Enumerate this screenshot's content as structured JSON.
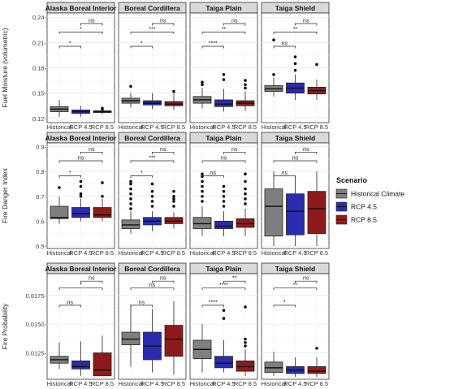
{
  "chart_data": {
    "type": "boxplot",
    "facets_columns": [
      "Alaska Boreal Interior",
      "Boreal Cordillera",
      "Taiga Plain",
      "Taiga Shield"
    ],
    "x_categories": [
      "Historical",
      "RCP 4.5",
      "RCP 8.5"
    ],
    "legend": {
      "title": "Scenario",
      "entries": [
        {
          "label": "Historical Climate",
          "color": "#7f7f7f"
        },
        {
          "label": "RCP 4.5",
          "color": "#2b2bb0"
        },
        {
          "label": "RCP 8.5",
          "color": "#8e1b1b"
        }
      ]
    },
    "rows": [
      {
        "ylabel": "Fuel Moisture (volumetric)",
        "ylim": [
          0.115,
          0.245
        ],
        "ticks": [
          0.12,
          0.15,
          0.18,
          0.21,
          0.24
        ],
        "tick_labels": [
          "0.12-",
          "0.15-",
          "0.18-",
          "0.21-",
          "0.24-"
        ],
        "panels": [
          {
            "boxes": [
              {
                "q1": 0.128,
                "med": 0.131,
                "q3": 0.134,
                "lo": 0.122,
                "hi": 0.142,
                "out": []
              },
              {
                "q1": 0.126,
                "med": 0.128,
                "q3": 0.13,
                "lo": 0.122,
                "hi": 0.135,
                "out": []
              },
              {
                "q1": 0.127,
                "med": 0.128,
                "q3": 0.129,
                "lo": 0.125,
                "hi": 0.132,
                "out": [
                  0.131,
                  0.132
                ]
              }
            ],
            "brackets": [
              {
                "a": 0,
                "b": 1,
                "y": 0.2055,
                "label": "*"
              },
              {
                "a": 0,
                "b": 2,
                "y": 0.2225,
                "label": "*"
              },
              {
                "a": 1,
                "b": 2,
                "y": 0.2325,
                "label": "ns"
              }
            ]
          },
          {
            "boxes": [
              {
                "q1": 0.138,
                "med": 0.141,
                "q3": 0.144,
                "lo": 0.133,
                "hi": 0.15,
                "out": [
                  0.158
                ]
              },
              {
                "q1": 0.136,
                "med": 0.138,
                "q3": 0.141,
                "lo": 0.131,
                "hi": 0.15,
                "out": []
              },
              {
                "q1": 0.135,
                "med": 0.137,
                "q3": 0.14,
                "lo": 0.13,
                "hi": 0.15,
                "out": [
                  0.152
                ]
              }
            ],
            "brackets": [
              {
                "a": 0,
                "b": 1,
                "y": 0.2055,
                "label": "*"
              },
              {
                "a": 0,
                "b": 2,
                "y": 0.2225,
                "label": "***"
              },
              {
                "a": 1,
                "b": 2,
                "y": 0.2325,
                "label": "ns"
              }
            ]
          },
          {
            "boxes": [
              {
                "q1": 0.138,
                "med": 0.142,
                "q3": 0.146,
                "lo": 0.132,
                "hi": 0.156,
                "out": [
                  0.16,
                  0.163
                ]
              },
              {
                "q1": 0.134,
                "med": 0.137,
                "q3": 0.142,
                "lo": 0.128,
                "hi": 0.155,
                "out": [
                  0.166,
                  0.172
                ]
              },
              {
                "q1": 0.135,
                "med": 0.138,
                "q3": 0.141,
                "lo": 0.129,
                "hi": 0.152,
                "out": [
                  0.156,
                  0.16,
                  0.165
                ]
              }
            ],
            "brackets": [
              {
                "a": 0,
                "b": 1,
                "y": 0.2055,
                "label": "****"
              },
              {
                "a": 0,
                "b": 2,
                "y": 0.2225,
                "label": "**"
              },
              {
                "a": 1,
                "b": 2,
                "y": 0.2325,
                "label": "ns"
              }
            ]
          },
          {
            "boxes": [
              {
                "q1": 0.152,
                "med": 0.155,
                "q3": 0.159,
                "lo": 0.146,
                "hi": 0.168,
                "out": [
                  0.172,
                  0.213
                ]
              },
              {
                "q1": 0.15,
                "med": 0.156,
                "q3": 0.162,
                "lo": 0.142,
                "hi": 0.172,
                "out": [
                  0.177,
                  0.185,
                  0.193
                ]
              },
              {
                "q1": 0.149,
                "med": 0.153,
                "q3": 0.157,
                "lo": 0.142,
                "hi": 0.166,
                "out": [
                  0.184
                ]
              }
            ],
            "brackets": [
              {
                "a": 0,
                "b": 1,
                "y": 0.2055,
                "label": "ns"
              },
              {
                "a": 0,
                "b": 2,
                "y": 0.2225,
                "label": "**"
              },
              {
                "a": 1,
                "b": 2,
                "y": 0.2325,
                "label": "ns"
              }
            ]
          }
        ]
      },
      {
        "ylabel": "Fire Danger Index",
        "ylim": [
          0.49,
          0.915
        ],
        "ticks": [
          0.5,
          0.6,
          0.7,
          0.8,
          0.9
        ],
        "tick_labels": [
          "0.5-",
          "0.6-",
          "0.7-",
          "0.8-",
          "0.9-"
        ],
        "panels": [
          {
            "boxes": [
              {
                "q1": 0.61,
                "med": 0.615,
                "q3": 0.66,
                "lo": 0.59,
                "hi": 0.7,
                "out": [
                  0.735
                ]
              },
              {
                "q1": 0.615,
                "med": 0.63,
                "q3": 0.655,
                "lo": 0.6,
                "hi": 0.69,
                "out": [
                  0.7,
                  0.71,
                  0.74,
                  0.76
                ]
              },
              {
                "q1": 0.615,
                "med": 0.625,
                "q3": 0.655,
                "lo": 0.6,
                "hi": 0.69,
                "out": [
                  0.7,
                  0.755
                ]
              }
            ],
            "brackets": [
              {
                "a": 0,
                "b": 1,
                "y": 0.783,
                "label": "*"
              },
              {
                "a": 0,
                "b": 2,
                "y": 0.843,
                "label": "ns"
              },
              {
                "a": 1,
                "b": 2,
                "y": 0.878,
                "label": "ns"
              }
            ]
          },
          {
            "boxes": [
              {
                "q1": 0.57,
                "med": 0.585,
                "q3": 0.605,
                "lo": 0.55,
                "hi": 0.64,
                "out": [
                  0.65,
                  0.67,
                  0.69,
                  0.71,
                  0.73,
                  0.75,
                  0.76
                ]
              },
              {
                "q1": 0.585,
                "med": 0.6,
                "q3": 0.615,
                "lo": 0.56,
                "hi": 0.64,
                "out": [
                  0.66,
                  0.68,
                  0.7,
                  0.72,
                  0.75
                ]
              },
              {
                "q1": 0.59,
                "med": 0.6,
                "q3": 0.615,
                "lo": 0.57,
                "hi": 0.635,
                "out": [
                  0.66,
                  0.68,
                  0.69,
                  0.7,
                  0.72
                ]
              }
            ],
            "brackets": [
              {
                "a": 0,
                "b": 1,
                "y": 0.783,
                "label": "*"
              },
              {
                "a": 0,
                "b": 2,
                "y": 0.843,
                "label": "***"
              },
              {
                "a": 1,
                "b": 2,
                "y": 0.878,
                "label": "ns"
              }
            ]
          },
          {
            "boxes": [
              {
                "q1": 0.57,
                "med": 0.59,
                "q3": 0.615,
                "lo": 0.54,
                "hi": 0.66,
                "out": [
                  0.68,
                  0.7,
                  0.72,
                  0.74,
                  0.76,
                  0.78,
                  0.79
                ]
              },
              {
                "q1": 0.57,
                "med": 0.58,
                "q3": 0.6,
                "lo": 0.54,
                "hi": 0.64,
                "out": [
                  0.66,
                  0.68,
                  0.7,
                  0.72,
                  0.74
                ]
              },
              {
                "q1": 0.575,
                "med": 0.59,
                "q3": 0.61,
                "lo": 0.54,
                "hi": 0.65,
                "out": [
                  0.67,
                  0.69,
                  0.71,
                  0.73,
                  0.76,
                  0.79
                ]
              }
            ],
            "brackets": [
              {
                "a": 0,
                "b": 1,
                "y": 0.783,
                "label": "ns"
              },
              {
                "a": 0,
                "b": 2,
                "y": 0.843,
                "label": "ns"
              },
              {
                "a": 1,
                "b": 2,
                "y": 0.878,
                "label": "ns"
              }
            ]
          },
          {
            "boxes": [
              {
                "q1": 0.54,
                "med": 0.66,
                "q3": 0.73,
                "lo": 0.5,
                "hi": 0.8,
                "out": []
              },
              {
                "q1": 0.545,
                "med": 0.64,
                "q3": 0.71,
                "lo": 0.5,
                "hi": 0.78,
                "out": []
              },
              {
                "q1": 0.55,
                "med": 0.65,
                "q3": 0.72,
                "lo": 0.5,
                "hi": 0.8,
                "out": []
              }
            ],
            "brackets": [
              {
                "a": 0,
                "b": 1,
                "y": 0.783,
                "label": "ns"
              },
              {
                "a": 0,
                "b": 2,
                "y": 0.843,
                "label": "ns"
              },
              {
                "a": 1,
                "b": 2,
                "y": 0.878,
                "label": "ns"
              }
            ]
          }
        ]
      },
      {
        "ylabel": "Fire Probability",
        "ylim": [
          0.0102,
          0.0194
        ],
        "ticks": [
          0.0125,
          0.015,
          0.0175
        ],
        "tick_labels": [
          "0.0125-",
          "0.0150-",
          "0.0175-"
        ],
        "panels": [
          {
            "boxes": [
              {
                "q1": 0.0116,
                "med": 0.0119,
                "q3": 0.0122,
                "lo": 0.0111,
                "hi": 0.0134,
                "out": []
              },
              {
                "q1": 0.0111,
                "med": 0.0113,
                "q3": 0.0118,
                "lo": 0.0105,
                "hi": 0.0135,
                "out": []
              },
              {
                "q1": 0.0105,
                "med": 0.011,
                "q3": 0.0125,
                "lo": 0.0105,
                "hi": 0.014,
                "out": []
              }
            ],
            "brackets": [
              {
                "a": 0,
                "b": 1,
                "y": 0.01665,
                "label": "ns"
              },
              {
                "a": 0,
                "b": 2,
                "y": 0.01815,
                "label": "*"
              },
              {
                "a": 1,
                "b": 2,
                "y": 0.01875,
                "label": "ns"
              }
            ]
          },
          {
            "boxes": [
              {
                "q1": 0.0132,
                "med": 0.0137,
                "q3": 0.0143,
                "lo": 0.0113,
                "hi": 0.0167,
                "out": []
              },
              {
                "q1": 0.0119,
                "med": 0.0131,
                "q3": 0.0143,
                "lo": 0.0108,
                "hi": 0.0163,
                "out": []
              },
              {
                "q1": 0.0122,
                "med": 0.0137,
                "q3": 0.0149,
                "lo": 0.0106,
                "hi": 0.017,
                "out": []
              }
            ],
            "brackets": [
              {
                "a": 0,
                "b": 1,
                "y": 0.01665,
                "label": "ns"
              },
              {
                "a": 0,
                "b": 2,
                "y": 0.01815,
                "label": "ns"
              },
              {
                "a": 1,
                "b": 2,
                "y": 0.01875,
                "label": "ns"
              }
            ]
          },
          {
            "boxes": [
              {
                "q1": 0.012,
                "med": 0.0128,
                "q3": 0.0136,
                "lo": 0.0108,
                "hi": 0.015,
                "out": []
              },
              {
                "q1": 0.0112,
                "med": 0.0116,
                "q3": 0.0122,
                "lo": 0.0108,
                "hi": 0.0136,
                "out": [
                  0.0155,
                  0.0162
                ]
              },
              {
                "q1": 0.0109,
                "med": 0.0113,
                "q3": 0.0118,
                "lo": 0.0105,
                "hi": 0.0128,
                "out": [
                  0.0131,
                  0.0134,
                  0.0137,
                  0.0165
                ]
              }
            ],
            "brackets": [
              {
                "a": 0,
                "b": 1,
                "y": 0.01665,
                "label": "****"
              },
              {
                "a": 0,
                "b": 2,
                "y": 0.01815,
                "label": "****"
              },
              {
                "a": 1,
                "b": 2,
                "y": 0.01875,
                "label": "**"
              }
            ]
          },
          {
            "boxes": [
              {
                "q1": 0.0108,
                "med": 0.0112,
                "q3": 0.0117,
                "lo": 0.0105,
                "hi": 0.0126,
                "out": []
              },
              {
                "q1": 0.0107,
                "med": 0.011,
                "q3": 0.0113,
                "lo": 0.0104,
                "hi": 0.0121,
                "out": []
              },
              {
                "q1": 0.0107,
                "med": 0.0109,
                "q3": 0.0113,
                "lo": 0.0104,
                "hi": 0.0121,
                "out": [
                  0.0129
                ]
              }
            ],
            "brackets": [
              {
                "a": 0,
                "b": 1,
                "y": 0.01665,
                "label": "*"
              },
              {
                "a": 0,
                "b": 2,
                "y": 0.01815,
                "label": "**"
              },
              {
                "a": 1,
                "b": 2,
                "y": 0.01875,
                "label": "ns"
              }
            ]
          }
        ]
      }
    ]
  }
}
